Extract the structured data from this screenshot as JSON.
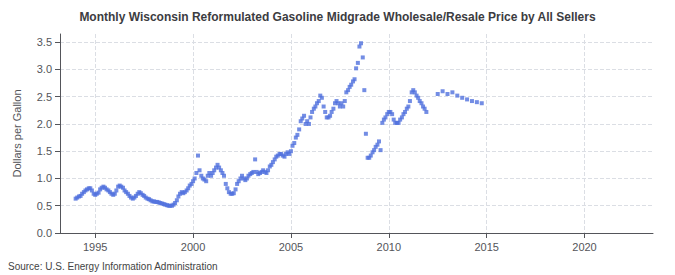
{
  "chart_data": {
    "type": "scatter",
    "title": "Monthly Wisconsin Reformulated Gasoline Midgrade Wholesale/Resale Price by All Sellers",
    "ylabel": "Dollars per Gallon",
    "annotations": [
      "Source: U.S. Energy Information Administration"
    ],
    "marker": "square",
    "grid": true,
    "xlim": [
      1993.2,
      2023.5
    ],
    "ylim": [
      0.0,
      3.65
    ],
    "xticks": [
      1995,
      2000,
      2005,
      2010,
      2015,
      2020
    ],
    "yticks": [
      {
        "value": 0.0,
        "label": "0.0"
      },
      {
        "value": 0.5,
        "label": "0.5"
      },
      {
        "value": 1.0,
        "label": "1.0"
      },
      {
        "value": 1.5,
        "label": "1.5"
      },
      {
        "value": 2.0,
        "label": "2.0"
      },
      {
        "value": 2.5,
        "label": "2.5"
      },
      {
        "value": 3.0,
        "label": "3.0"
      },
      {
        "value": 3.5,
        "label": "3.5"
      }
    ],
    "x": [
      1994.0,
      1994.08,
      1994.17,
      1994.25,
      1994.33,
      1994.42,
      1994.5,
      1994.58,
      1994.67,
      1994.75,
      1994.83,
      1994.92,
      1995.0,
      1995.08,
      1995.17,
      1995.25,
      1995.33,
      1995.42,
      1995.5,
      1995.58,
      1995.67,
      1995.75,
      1995.83,
      1995.92,
      1996.0,
      1996.08,
      1996.17,
      1996.25,
      1996.33,
      1996.42,
      1996.5,
      1996.58,
      1996.67,
      1996.75,
      1996.83,
      1996.92,
      1997.0,
      1997.08,
      1997.17,
      1997.25,
      1997.33,
      1997.42,
      1997.5,
      1997.58,
      1997.67,
      1997.75,
      1997.83,
      1997.92,
      1998.0,
      1998.08,
      1998.17,
      1998.25,
      1998.33,
      1998.42,
      1998.5,
      1998.58,
      1998.67,
      1998.75,
      1998.83,
      1998.92,
      1999.0,
      1999.08,
      1999.17,
      1999.25,
      1999.33,
      1999.42,
      1999.5,
      1999.58,
      1999.67,
      1999.75,
      1999.83,
      1999.92,
      2000.0,
      2000.08,
      2000.17,
      2000.25,
      2000.33,
      2000.42,
      2000.5,
      2000.58,
      2000.67,
      2000.75,
      2000.83,
      2000.92,
      2001.0,
      2001.08,
      2001.17,
      2001.25,
      2001.33,
      2001.42,
      2001.5,
      2001.58,
      2001.67,
      2001.75,
      2001.83,
      2001.92,
      2002.0,
      2002.08,
      2002.17,
      2002.25,
      2002.33,
      2002.42,
      2002.5,
      2002.58,
      2002.67,
      2002.75,
      2002.83,
      2002.92,
      2003.0,
      2003.08,
      2003.17,
      2003.25,
      2003.33,
      2003.42,
      2003.5,
      2003.58,
      2003.67,
      2003.75,
      2003.83,
      2003.92,
      2004.0,
      2004.08,
      2004.17,
      2004.25,
      2004.33,
      2004.42,
      2004.5,
      2004.58,
      2004.67,
      2004.75,
      2004.83,
      2004.92,
      2005.0,
      2005.08,
      2005.17,
      2005.25,
      2005.33,
      2005.42,
      2005.5,
      2005.58,
      2005.67,
      2005.75,
      2005.83,
      2005.92,
      2006.0,
      2006.08,
      2006.17,
      2006.25,
      2006.33,
      2006.42,
      2006.5,
      2006.58,
      2006.67,
      2006.75,
      2006.83,
      2006.92,
      2007.0,
      2007.08,
      2007.17,
      2007.25,
      2007.33,
      2007.42,
      2007.5,
      2007.58,
      2007.67,
      2007.75,
      2007.83,
      2007.92,
      2008.0,
      2008.08,
      2008.17,
      2008.25,
      2008.33,
      2008.42,
      2008.5,
      2008.58,
      2008.67,
      2008.75,
      2008.83,
      2008.92,
      2009.0,
      2009.08,
      2009.17,
      2009.25,
      2009.33,
      2009.42,
      2009.5,
      2009.58,
      2009.67,
      2009.75,
      2009.83,
      2009.92,
      2010.0,
      2010.08,
      2010.17,
      2010.25,
      2010.33,
      2010.42,
      2010.5,
      2010.58,
      2010.67,
      2010.75,
      2010.83,
      2010.92,
      2011.0,
      2011.08,
      2011.17,
      2011.25,
      2011.33,
      2011.42,
      2011.5,
      2011.58,
      2011.67,
      2011.75,
      2011.83,
      2011.92,
      2012.5,
      2012.75,
      2013.0,
      2013.25,
      2013.5,
      2013.75,
      2014.0,
      2014.25,
      2014.5,
      2014.75
    ],
    "values": [
      0.63,
      0.65,
      0.67,
      0.68,
      0.72,
      0.75,
      0.78,
      0.8,
      0.82,
      0.82,
      0.78,
      0.72,
      0.7,
      0.72,
      0.74,
      0.8,
      0.83,
      0.85,
      0.83,
      0.8,
      0.78,
      0.75,
      0.72,
      0.7,
      0.72,
      0.78,
      0.85,
      0.87,
      0.85,
      0.83,
      0.78,
      0.75,
      0.72,
      0.68,
      0.65,
      0.63,
      0.65,
      0.68,
      0.72,
      0.75,
      0.73,
      0.7,
      0.68,
      0.65,
      0.63,
      0.62,
      0.6,
      0.58,
      0.58,
      0.57,
      0.57,
      0.56,
      0.55,
      0.54,
      0.53,
      0.52,
      0.51,
      0.5,
      0.5,
      0.5,
      0.52,
      0.55,
      0.6,
      0.67,
      0.72,
      0.75,
      0.73,
      0.75,
      0.78,
      0.82,
      0.87,
      0.9,
      0.95,
      1.0,
      1.1,
      1.42,
      1.15,
      1.05,
      1.0,
      0.98,
      0.95,
      1.05,
      1.1,
      1.05,
      1.1,
      1.15,
      1.2,
      1.25,
      1.2,
      1.15,
      1.1,
      1.05,
      0.9,
      0.82,
      0.75,
      0.72,
      0.72,
      0.73,
      0.8,
      0.9,
      0.95,
      1.0,
      1.05,
      1.0,
      0.97,
      1.0,
      1.05,
      1.08,
      1.1,
      1.12,
      1.35,
      1.12,
      1.08,
      1.1,
      1.12,
      1.15,
      1.12,
      1.1,
      1.15,
      1.22,
      1.25,
      1.3,
      1.35,
      1.4,
      1.42,
      1.45,
      1.45,
      1.42,
      1.4,
      1.45,
      1.48,
      1.45,
      1.5,
      1.6,
      1.65,
      1.75,
      1.8,
      1.9,
      2.05,
      2.1,
      2.15,
      2.0,
      2.05,
      2.0,
      2.12,
      2.22,
      2.28,
      2.32,
      2.38,
      2.42,
      2.52,
      2.48,
      2.32,
      2.22,
      2.12,
      2.12,
      2.15,
      2.22,
      2.28,
      2.38,
      2.42,
      2.38,
      2.32,
      2.38,
      2.32,
      2.42,
      2.58,
      2.62,
      2.68,
      2.72,
      2.78,
      2.82,
      3.02,
      3.12,
      3.42,
      3.48,
      3.22,
      2.62,
      1.82,
      1.38,
      1.38,
      1.42,
      1.48,
      1.52,
      1.58,
      1.62,
      1.68,
      1.52,
      2.02,
      2.08,
      2.12,
      2.18,
      2.22,
      2.22,
      2.18,
      2.08,
      2.02,
      2.02,
      2.02,
      2.08,
      2.12,
      2.18,
      2.22,
      2.28,
      2.32,
      2.42,
      2.58,
      2.62,
      2.58,
      2.52,
      2.48,
      2.42,
      2.38,
      2.32,
      2.28,
      2.22,
      2.55,
      2.6,
      2.55,
      2.58,
      2.52,
      2.48,
      2.45,
      2.42,
      2.4,
      2.38
    ]
  }
}
